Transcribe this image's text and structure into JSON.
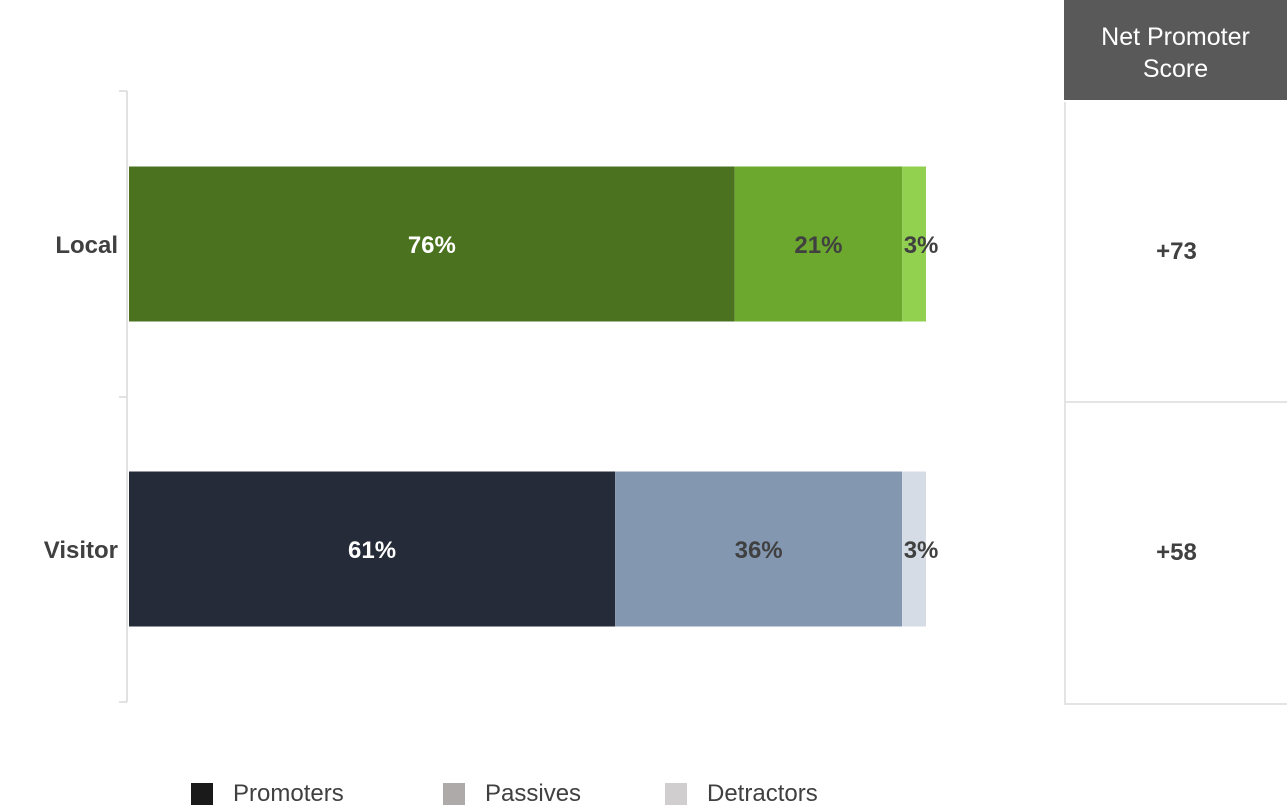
{
  "chart_data": {
    "type": "bar",
    "orientation": "horizontal",
    "stacked": true,
    "categories": [
      "Local",
      "Visitor"
    ],
    "series": [
      {
        "name": "Promoters",
        "values": [
          76,
          61
        ]
      },
      {
        "name": "Passives",
        "values": [
          21,
          36
        ]
      },
      {
        "name": "Detractors",
        "values": [
          3,
          3
        ]
      }
    ],
    "data_labels": [
      [
        "76%",
        "21%",
        "3%"
      ],
      [
        "61%",
        "36%",
        "3%"
      ]
    ],
    "bar_colors": [
      [
        "#4b721f",
        "#6ca82e",
        "#92d050"
      ],
      [
        "#252b38",
        "#8497b0",
        "#d6dce5"
      ]
    ],
    "label_colors": [
      [
        "#ffffff",
        "#404040",
        "#404040"
      ],
      [
        "#ffffff",
        "#404040",
        "#404040"
      ]
    ],
    "xlim": [
      0,
      100
    ],
    "grid": false,
    "legend_position": "bottom"
  },
  "legend": {
    "items": [
      {
        "label": "Promoters",
        "color": "#1a1a1a"
      },
      {
        "label": "Passives",
        "color": "#aeaaaa"
      },
      {
        "label": "Detractors",
        "color": "#d0cece"
      }
    ]
  },
  "nps_table": {
    "header": "Net Promoter Score",
    "rows": [
      {
        "value": "+73"
      },
      {
        "value": "+58"
      }
    ]
  }
}
